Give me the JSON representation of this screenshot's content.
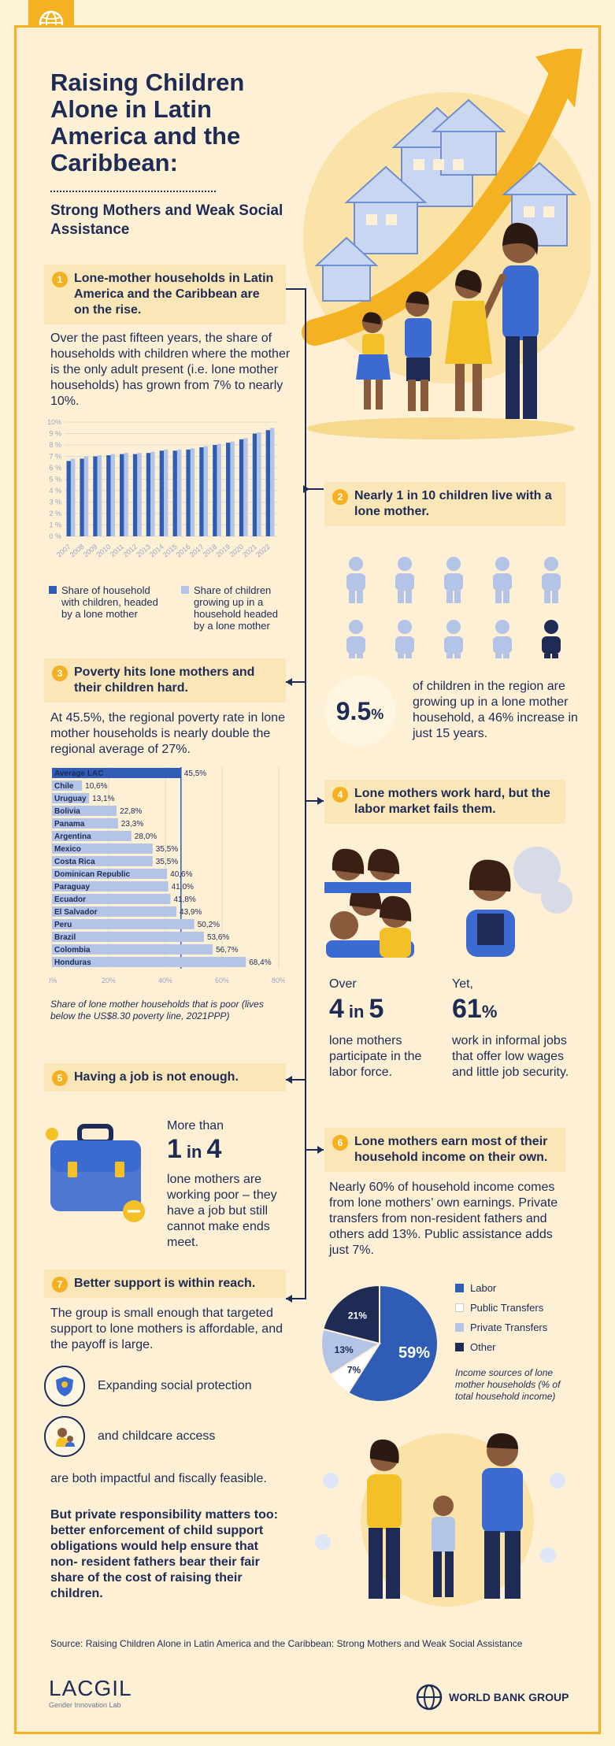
{
  "title": "Raising Children Alone in Latin America and the Caribbean:",
  "subtitle": "Strong Mothers and Weak Social Assistance",
  "sections": [
    {
      "num": "1",
      "heading": "Lone-mother households in Latin America and the Caribbean are on the rise.",
      "text": "Over the past fifteen years, the share of households with children where the mother is the only adult present (i.e. lone mother households) has grown from 7% to nearly 10%."
    },
    {
      "num": "2",
      "heading": "Nearly 1 in 10 children live with a lone mother."
    },
    {
      "num": "3",
      "heading": "Poverty hits lone mothers and their children hard.",
      "text": "At 45.5%, the regional poverty rate in lone mother households is nearly double the regional average of 27%."
    },
    {
      "num": "4",
      "heading": "Lone mothers work hard, but the labor market fails them."
    },
    {
      "num": "5",
      "heading": "Having a job is not enough."
    },
    {
      "num": "6",
      "heading": "Lone mothers earn most of their household income on their own.",
      "text": "Nearly 60% of household income comes from lone mothers’ own earnings. Private transfers from non-resident fathers and others add 13%. Public assistance adds just 7%."
    },
    {
      "num": "7",
      "heading": "Better support is within reach.",
      "text": "The group is small enough that targeted support to lone mothers is affordable, and the payoff is large."
    }
  ],
  "stat_children": {
    "value": "9.5",
    "unit": "%",
    "text": "of children in the region are growing up in a lone mother household, a 46% increase in just 15 years."
  },
  "stat_labor": {
    "pre": "Over",
    "a": "4",
    "mid": "in",
    "b": "5",
    "text": "lone mothers participate in the labor force."
  },
  "stat_informal": {
    "pre": "Yet,",
    "value": "61",
    "unit": "%",
    "text": "work in informal jobs that offer low wages and little job security."
  },
  "stat_poor": {
    "pre": "More than",
    "a": "1",
    "mid": "in",
    "b": "4",
    "text": "lone mothers are working poor – they have a job but still cannot make ends meet."
  },
  "support": {
    "item1": "Expanding social protection",
    "item2": "and childcare access",
    "item3": "are both impactful and fiscally feasible.",
    "closing": "But private responsibility matters too: better enforcement of child support obligations would help ensure that non- resident fathers bear their fair share of the cost of raising their children."
  },
  "source": "Source: Raising Children Alone in Latin America and the Caribbean: Strong Mothers and Weak Social Assistance",
  "footer": {
    "lacgil": "LACGIL",
    "lacgil_sub": "Gender Innovation Lab",
    "wbg": "WORLD BANK GROUP"
  },
  "colors": {
    "navy": "#1d2b55",
    "blue": "#2f5cb5",
    "light_blue": "#b3c4e6",
    "gold": "#f4b223",
    "cream": "#fdf0d5"
  },
  "chart_data": [
    {
      "type": "bar",
      "categories": [
        "2007",
        "2008",
        "2009",
        "2010",
        "2011",
        "2012",
        "2013",
        "2014",
        "2015",
        "2016",
        "2017",
        "2018",
        "2019",
        "2020",
        "2021",
        "2022"
      ],
      "series": [
        {
          "name": "Share of household with children, headed by a lone mother",
          "values": [
            6.6,
            6.8,
            7.0,
            7.1,
            7.2,
            7.2,
            7.3,
            7.5,
            7.5,
            7.6,
            7.8,
            8.0,
            8.2,
            8.5,
            9.0,
            9.3
          ]
        },
        {
          "name": "Share of children growing up in a household headed by a lone mother",
          "values": [
            6.8,
            7.0,
            7.1,
            7.2,
            7.3,
            7.3,
            7.4,
            7.6,
            7.6,
            7.7,
            7.9,
            8.1,
            8.3,
            8.6,
            9.1,
            9.5
          ]
        }
      ],
      "yticks": [
        "0 %",
        "1 %",
        "2 %",
        "3 %",
        "4 %",
        "5 %",
        "6 %",
        "7 %",
        "8 %",
        "9 %",
        "10%"
      ],
      "ylim": [
        0,
        10
      ]
    },
    {
      "type": "bar",
      "orientation": "horizontal",
      "categories": [
        "Average LAC",
        "Chile",
        "Uruguay",
        "Bolivia",
        "Panama",
        "Argentina",
        "Mexico",
        "Costa Rica",
        "Dominican Republic",
        "Paraguay",
        "Ecuador",
        "El Salvador",
        "Peru",
        "Brazil",
        "Colombia",
        "Honduras"
      ],
      "values": [
        45.5,
        10.6,
        13.1,
        22.8,
        23.3,
        28.0,
        35.5,
        35.5,
        40.6,
        41.0,
        41.8,
        43.9,
        50.2,
        53.6,
        56.7,
        68.4
      ],
      "labels": [
        "45,5%",
        "10,6%",
        "13,1%",
        "22,8%",
        "23,3%",
        "28,0%",
        "35,5%",
        "35,5%",
        "40,6%",
        "41,0%",
        "41,8%",
        "43,9%",
        "50,2%",
        "53,6%",
        "56,7%",
        "68,4%"
      ],
      "xticks": [
        "0%",
        "20%",
        "40%",
        "60%",
        "80%"
      ],
      "xlim": [
        0,
        80
      ],
      "caption": "Share of lone mother households that is poor (lives below the US$8.30 poverty line, 2021PPP)"
    },
    {
      "type": "pie",
      "categories": [
        "Labor",
        "Public Transfers",
        "Private Transfers",
        "Other"
      ],
      "values": [
        59,
        7,
        13,
        21
      ],
      "labels": [
        "59%",
        "7%",
        "13%",
        "21%"
      ],
      "colors": [
        "#2f5cb5",
        "#ffffff",
        "#b3c4e6",
        "#1d2b55"
      ],
      "caption": "Income sources of lone mother households (% of total household income)"
    }
  ]
}
